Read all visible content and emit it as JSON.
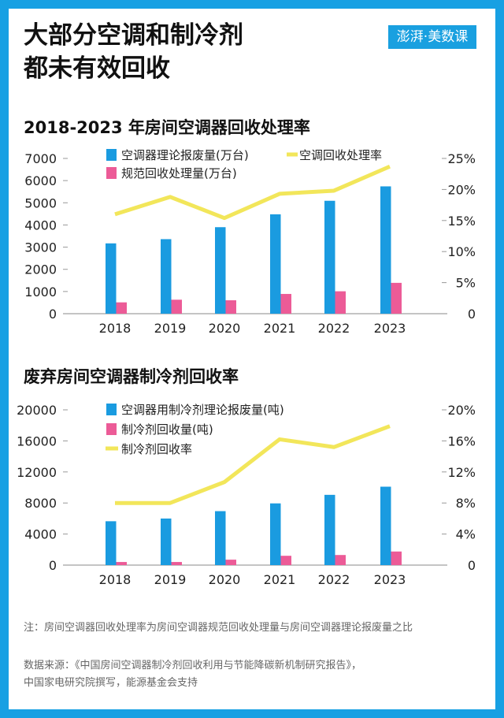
{
  "title_line1": "大部分空调和制冷剂",
  "title_line2": "都未有效回收",
  "logo_text": "澎湃·美数课",
  "colors": {
    "frame": "#17a0e3",
    "blue": "#1a9be0",
    "pink": "#ec5b97",
    "yellow": "#f2e65a"
  },
  "chart_data": [
    {
      "type": "bar",
      "title": "2018-2023 年房间空调器回收处理率",
      "categories": [
        "2018",
        "2019",
        "2020",
        "2021",
        "2022",
        "2023"
      ],
      "ylim": [
        0,
        7000
      ],
      "yticks": [
        "0",
        "1000",
        "2000",
        "3000",
        "4000",
        "5000",
        "6000",
        "7000"
      ],
      "y2lim": [
        0,
        25
      ],
      "y2ticks": [
        "0",
        "5%",
        "10%",
        "15%",
        "20%",
        "25%"
      ],
      "series": [
        {
          "name": "空调器理论报废量(万台)",
          "kind": "bar",
          "axis": "left",
          "values": [
            3170,
            3360,
            3900,
            4480,
            5090,
            5740
          ]
        },
        {
          "name": "规范回收处理量(万台)",
          "kind": "bar",
          "axis": "left",
          "values": [
            510,
            630,
            605,
            890,
            1010,
            1390
          ]
        },
        {
          "name": "空调回收处理率",
          "kind": "line",
          "axis": "right",
          "values": [
            16.0,
            18.8,
            15.4,
            19.3,
            19.8,
            23.7
          ]
        }
      ],
      "legend": "top"
    },
    {
      "type": "bar",
      "title": "废弃房间空调器制冷剂回收率",
      "categories": [
        "2018",
        "2019",
        "2020",
        "2021",
        "2022",
        "2023"
      ],
      "ylim": [
        0,
        20000
      ],
      "yticks": [
        "0",
        "4000",
        "8000",
        "12000",
        "16000",
        "20000"
      ],
      "y2lim": [
        0,
        20
      ],
      "y2ticks": [
        "0",
        "4%",
        "8%",
        "12%",
        "16%",
        "20%"
      ],
      "series": [
        {
          "name": "空调器用制冷剂理论报废量(吨)",
          "kind": "bar",
          "axis": "left",
          "values": [
            5650,
            6000,
            6950,
            7950,
            9050,
            10100
          ]
        },
        {
          "name": "制冷剂回收量(吨)",
          "kind": "bar",
          "axis": "left",
          "values": [
            400,
            400,
            700,
            1200,
            1300,
            1750
          ]
        },
        {
          "name": "制冷剂回收率",
          "kind": "line",
          "axis": "right",
          "values": [
            8.0,
            8.0,
            10.7,
            16.2,
            15.2,
            17.9
          ]
        }
      ],
      "legend": "top"
    }
  ],
  "note": "注：房间空调器回收处理率为房间空调器规范回收处理量与房间空调器理论报废量之比",
  "source_line1": "数据来源：《中国房间空调器制冷剂回收利用与节能降碳新机制研究报告》，",
  "source_line2": "中国家电研究院撰写，能源基金会支持"
}
